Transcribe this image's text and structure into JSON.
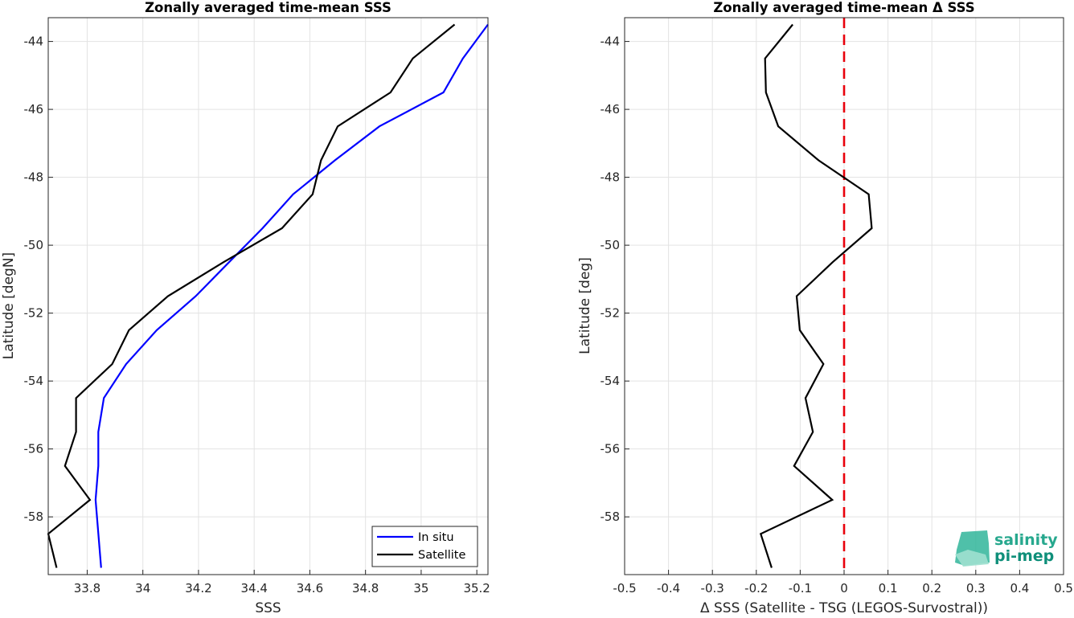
{
  "chart_data": [
    {
      "type": "line",
      "title": "Zonally averaged time-mean SSS",
      "xlabel": "SSS",
      "ylabel": "Latitude [degN]",
      "xlim": [
        33.66,
        35.24
      ],
      "ylim": [
        -59.7,
        -43.3
      ],
      "xticks": [
        "33.8",
        "34",
        "34.2",
        "34.4",
        "34.6",
        "34.8",
        "35",
        "35.2"
      ],
      "yticks": [
        "-44",
        "-46",
        "-48",
        "-50",
        "-52",
        "-54",
        "-56",
        "-58"
      ],
      "grid": true,
      "legend_position": "bottom-right",
      "series": [
        {
          "name": "In situ",
          "color": "#0000ff",
          "points": [
            [
              35.24,
              -43.5
            ],
            [
              35.15,
              -44.5
            ],
            [
              35.08,
              -45.5
            ],
            [
              34.85,
              -46.5
            ],
            [
              34.69,
              -47.5
            ],
            [
              34.54,
              -48.5
            ],
            [
              34.43,
              -49.5
            ],
            [
              34.31,
              -50.5
            ],
            [
              34.19,
              -51.5
            ],
            [
              34.05,
              -52.5
            ],
            [
              33.94,
              -53.5
            ],
            [
              33.86,
              -54.5
            ],
            [
              33.84,
              -55.5
            ],
            [
              33.84,
              -56.5
            ],
            [
              33.83,
              -57.5
            ],
            [
              33.85,
              -59.5
            ]
          ]
        },
        {
          "name": "Satellite",
          "color": "#000000",
          "points": [
            [
              35.12,
              -43.5
            ],
            [
              34.97,
              -44.5
            ],
            [
              34.89,
              -45.5
            ],
            [
              34.7,
              -46.5
            ],
            [
              34.64,
              -47.5
            ],
            [
              34.61,
              -48.5
            ],
            [
              34.5,
              -49.5
            ],
            [
              34.29,
              -50.5
            ],
            [
              34.09,
              -51.5
            ],
            [
              33.95,
              -52.5
            ],
            [
              33.89,
              -53.5
            ],
            [
              33.76,
              -54.5
            ],
            [
              33.76,
              -55.5
            ],
            [
              33.72,
              -56.5
            ],
            [
              33.81,
              -57.5
            ],
            [
              33.66,
              -58.5
            ],
            [
              33.69,
              -59.5
            ]
          ]
        }
      ]
    },
    {
      "type": "line",
      "title": "Zonally averaged time-mean Δ SSS",
      "xlabel": "Δ SSS (Satellite - TSG (LEGOS-Survostral))",
      "ylabel": "Latitude [deg]",
      "xlim": [
        -0.5,
        0.5
      ],
      "ylim": [
        -59.7,
        -43.3
      ],
      "xticks": [
        "-0.5",
        "-0.4",
        "-0.3",
        "-0.2",
        "-0.1",
        "0",
        "0.1",
        "0.2",
        "0.3",
        "0.4",
        "0.5"
      ],
      "yticks": [
        "-44",
        "-46",
        "-48",
        "-50",
        "-52",
        "-54",
        "-56",
        "-58"
      ],
      "grid": true,
      "reference_line": {
        "x": 0,
        "color": "#e8000b",
        "style": "dashed"
      },
      "series": [
        {
          "color": "#000000",
          "points": [
            [
              -0.117,
              -43.5
            ],
            [
              -0.18,
              -44.5
            ],
            [
              -0.178,
              -45.5
            ],
            [
              -0.15,
              -46.5
            ],
            [
              -0.058,
              -47.5
            ],
            [
              0.056,
              -48.5
            ],
            [
              0.063,
              -49.5
            ],
            [
              -0.026,
              -50.5
            ],
            [
              -0.108,
              -51.5
            ],
            [
              -0.101,
              -52.5
            ],
            [
              -0.047,
              -53.5
            ],
            [
              -0.088,
              -54.5
            ],
            [
              -0.071,
              -55.5
            ],
            [
              -0.114,
              -56.5
            ],
            [
              -0.027,
              -57.5
            ],
            [
              -0.19,
              -58.5
            ],
            [
              -0.165,
              -59.5
            ]
          ]
        }
      ]
    }
  ],
  "logo": {
    "line1": "salinity",
    "line2": "pi-mep"
  }
}
